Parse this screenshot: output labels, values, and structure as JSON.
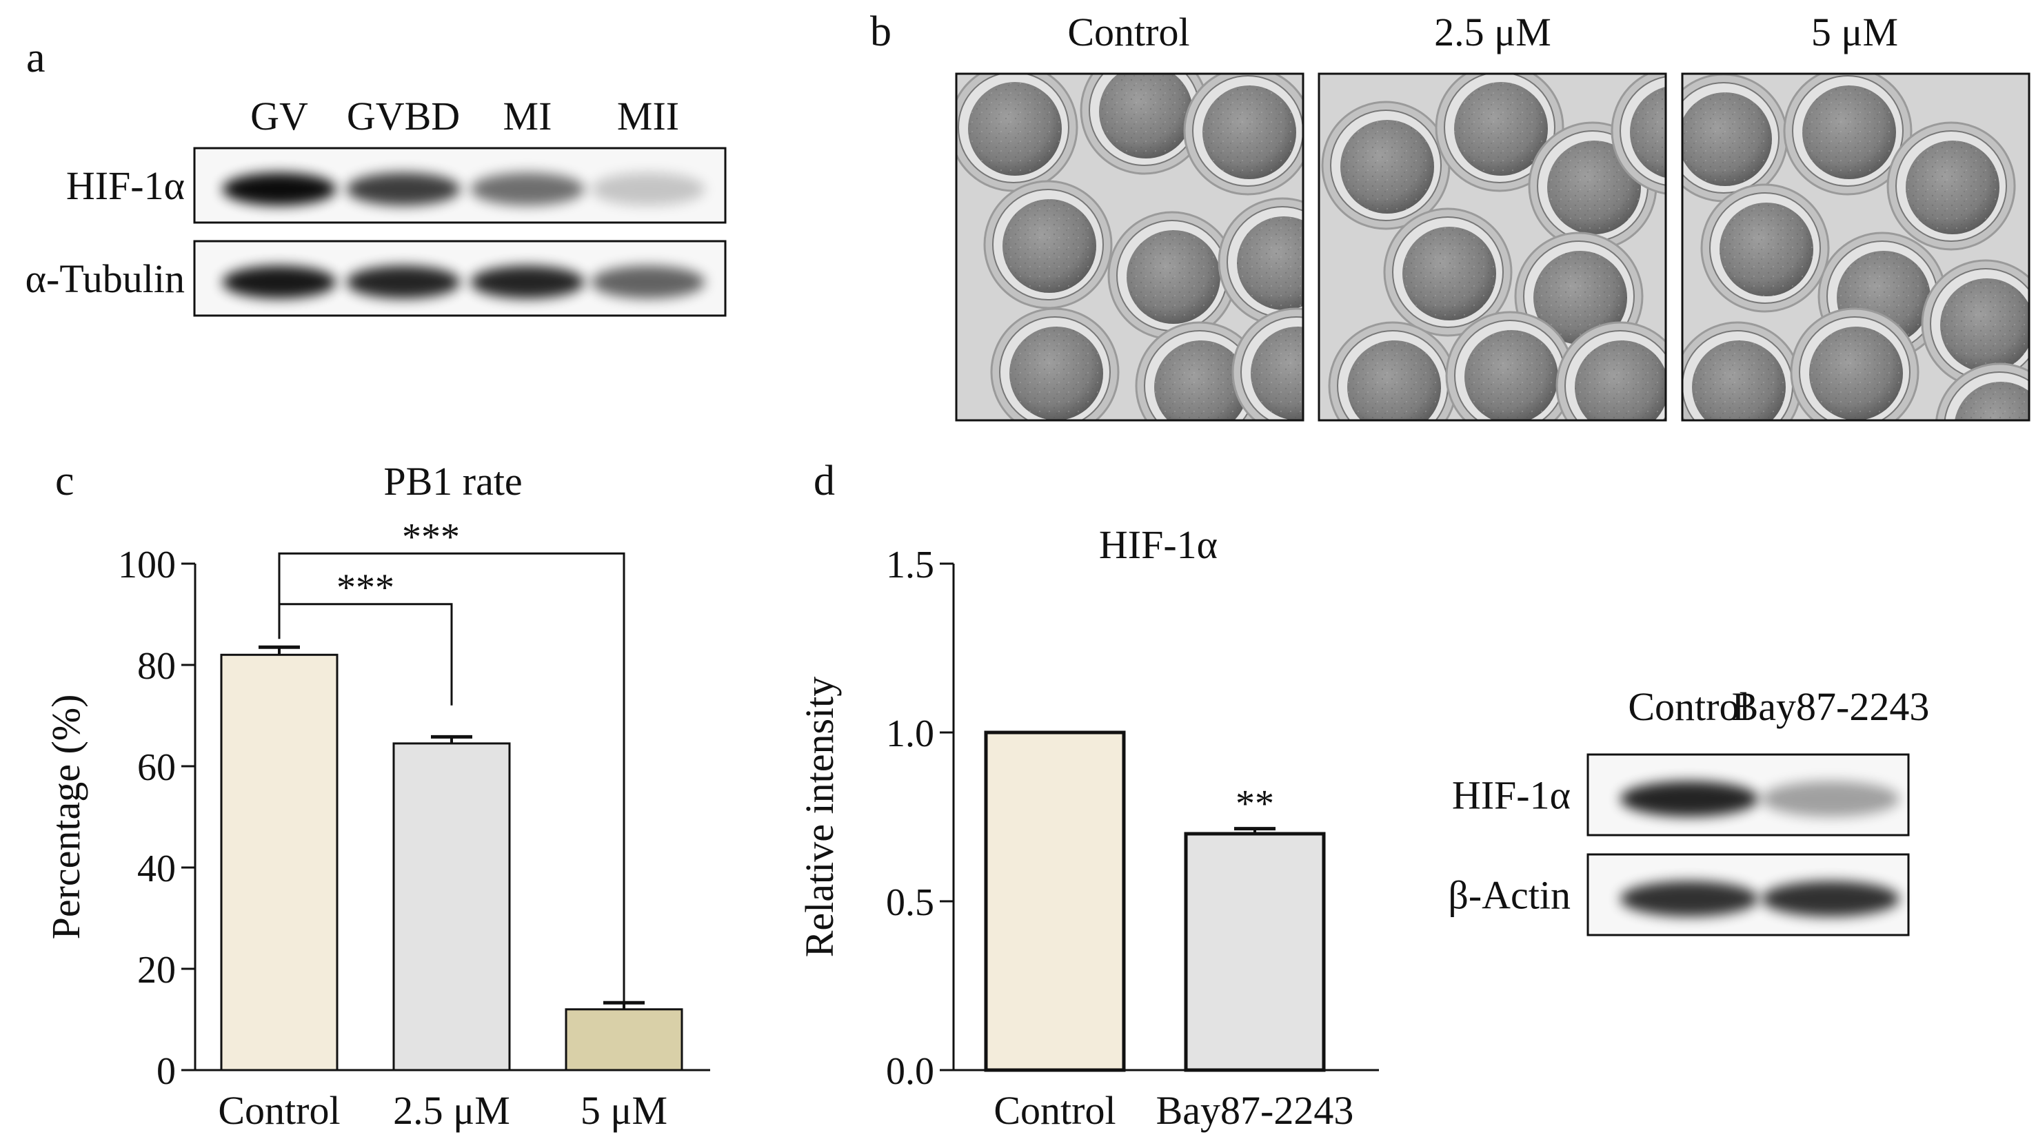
{
  "panels": {
    "a": {
      "label": "a",
      "lanes": [
        "GV",
        "GVBD",
        "MI",
        "MII"
      ],
      "rows": [
        "HIF-1α",
        "α-Tubulin"
      ],
      "band_intensity": {
        "HIF-1α": [
          0.95,
          0.75,
          0.55,
          0.2
        ],
        "α-Tubulin": [
          0.9,
          0.85,
          0.85,
          0.6
        ]
      }
    },
    "b": {
      "label": "b",
      "conditions": [
        "Control",
        "2.5 μM",
        "5 μM"
      ]
    },
    "c": {
      "label": "c",
      "significance": [
        "***",
        "***"
      ]
    },
    "d": {
      "label": "d",
      "significance": [
        "**"
      ],
      "blot": {
        "lanes": [
          "Control",
          "Bay87-2243"
        ],
        "rows": [
          "HIF-1α",
          "β-Actin"
        ],
        "band_intensity": {
          "HIF-1α": [
            0.85,
            0.35
          ],
          "β-Actin": [
            0.8,
            0.8
          ]
        }
      }
    }
  },
  "chart_data": [
    {
      "id": "c",
      "type": "bar",
      "title": "PB1 rate",
      "xlabel": "",
      "ylabel": "Percentage (%)",
      "categories": [
        "Control",
        "2.5 μM",
        "5 μM"
      ],
      "values": [
        82,
        64.5,
        12
      ],
      "errors": [
        1.5,
        1.3,
        1.3
      ],
      "ylim": [
        0,
        100
      ],
      "yticks": [
        "0",
        "20",
        "40",
        "60",
        "80",
        "100"
      ],
      "bar_colors": [
        "#f3ecdb",
        "#e3e3e3",
        "#d9d0a8"
      ],
      "grid": false
    },
    {
      "id": "d",
      "type": "bar",
      "title": "HIF-1α",
      "xlabel": "",
      "ylabel": "Relative intensity",
      "categories": [
        "Control",
        "Bay87-2243"
      ],
      "values": [
        1.0,
        0.7
      ],
      "errors": [
        0,
        0.015
      ],
      "ylim": [
        0,
        1.5
      ],
      "yticks": [
        "0.0",
        "0.5",
        "1.0",
        "1.5"
      ],
      "bar_colors": [
        "#f3ecdb",
        "#e3e3e3"
      ],
      "grid": false
    }
  ]
}
